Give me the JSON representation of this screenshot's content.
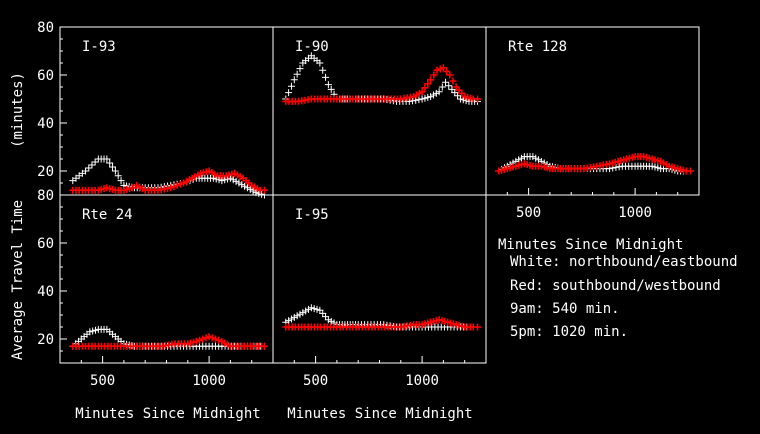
{
  "colors": {
    "background": "#000000",
    "frame": "#ffffff",
    "northbound": "#ffffff",
    "southbound": "#ff0000"
  },
  "labels": {
    "ylabel_outer": "Average Travel Time",
    "ylabel_inner": "(minutes)",
    "xlabel": "Minutes Since Midnight"
  },
  "legend": {
    "title": "Minutes Since Midnight",
    "lines": [
      "White: northbound/eastbound",
      "Red: southbound/westbound",
      "9am: 540 min.",
      "5pm: 1020 min."
    ]
  },
  "chart_data": [
    {
      "type": "scatter",
      "title": "I-93",
      "xlim": [
        300,
        1300
      ],
      "ylim": [
        10,
        80
      ],
      "yticks": [
        20,
        40,
        60,
        80
      ],
      "series": [
        {
          "name": "White: northbound/eastbound",
          "color": "#ffffff",
          "x": [
            360,
            420,
            480,
            520,
            560,
            600,
            650,
            700,
            760,
            820,
            880,
            940,
            980,
            1020,
            1060,
            1100,
            1140,
            1180,
            1220,
            1260
          ],
          "y": [
            16,
            20,
            25,
            25,
            20,
            14,
            13,
            13,
            13,
            14,
            15,
            17,
            17,
            17,
            16,
            17,
            15,
            13,
            11,
            10
          ]
        },
        {
          "name": "Red: southbound/westbound",
          "color": "#ff0000",
          "x": [
            360,
            420,
            480,
            520,
            560,
            600,
            640,
            660,
            700,
            760,
            820,
            880,
            920,
            960,
            1000,
            1040,
            1080,
            1120,
            1160,
            1200,
            1240,
            1260
          ],
          "y": [
            12,
            12,
            12,
            13,
            12,
            12,
            13,
            14,
            12,
            12,
            13,
            15,
            17,
            19,
            20,
            18,
            18,
            19,
            17,
            14,
            12,
            12
          ]
        }
      ]
    },
    {
      "type": "scatter",
      "title": "I-90",
      "xlim": [
        300,
        1300
      ],
      "ylim": [
        10,
        80
      ],
      "yticks": [
        20,
        40,
        60,
        80
      ],
      "series": [
        {
          "name": "White: northbound/eastbound",
          "color": "#ffffff",
          "x": [
            360,
            400,
            440,
            480,
            520,
            560,
            600,
            650,
            700,
            760,
            820,
            880,
            940,
            1000,
            1040,
            1080,
            1110,
            1140,
            1180,
            1220,
            1260
          ],
          "y": [
            50,
            58,
            65,
            68,
            65,
            56,
            50,
            50,
            50,
            50,
            50,
            49,
            49,
            50,
            51,
            53,
            57,
            54,
            50,
            49,
            49
          ]
        },
        {
          "name": "Red: southbound/westbound",
          "color": "#ff0000",
          "x": [
            360,
            420,
            480,
            540,
            600,
            660,
            720,
            780,
            840,
            900,
            960,
            1000,
            1040,
            1070,
            1100,
            1130,
            1160,
            1200,
            1240,
            1260
          ],
          "y": [
            49,
            49,
            50,
            50,
            50,
            50,
            50,
            50,
            50,
            50,
            51,
            53,
            58,
            62,
            63,
            60,
            55,
            51,
            50,
            50
          ]
        }
      ]
    },
    {
      "type": "scatter",
      "title": "Rte 128",
      "xlim": [
        300,
        1300
      ],
      "ylim": [
        10,
        80
      ],
      "yticks": [
        20,
        40,
        60,
        80
      ],
      "series": [
        {
          "name": "White: northbound/eastbound",
          "color": "#ffffff",
          "x": [
            360,
            400,
            440,
            480,
            520,
            560,
            600,
            650,
            700,
            760,
            820,
            880,
            940,
            1000,
            1040,
            1080,
            1120,
            1160,
            1200,
            1240,
            1260
          ],
          "y": [
            20,
            22,
            24,
            26,
            26,
            24,
            22,
            21,
            21,
            21,
            21,
            21,
            22,
            22,
            22,
            22,
            21,
            21,
            20,
            20,
            20
          ]
        },
        {
          "name": "Red: southbound/westbound",
          "color": "#ff0000",
          "x": [
            360,
            400,
            440,
            480,
            520,
            560,
            600,
            650,
            700,
            760,
            820,
            880,
            920,
            960,
            1000,
            1040,
            1080,
            1120,
            1160,
            1200,
            1240,
            1260
          ],
          "y": [
            20,
            21,
            22,
            23,
            22,
            22,
            21,
            21,
            21,
            21,
            22,
            23,
            24,
            25,
            26,
            26,
            25,
            24,
            22,
            21,
            20,
            20
          ]
        }
      ]
    },
    {
      "type": "scatter",
      "title": "Rte 24",
      "xlim": [
        300,
        1300
      ],
      "ylim": [
        10,
        80
      ],
      "yticks": [
        20,
        40,
        60,
        80
      ],
      "series": [
        {
          "name": "White: northbound/eastbound",
          "color": "#ffffff",
          "x": [
            360,
            400,
            440,
            480,
            520,
            560,
            600,
            650,
            700,
            760,
            820,
            880,
            940,
            1000,
            1060,
            1120,
            1180,
            1240,
            1260
          ],
          "y": [
            17,
            20,
            23,
            24,
            24,
            21,
            18,
            17,
            17,
            17,
            17,
            17,
            17,
            17,
            17,
            17,
            17,
            17,
            17
          ]
        },
        {
          "name": "Red: southbound/westbound",
          "color": "#ff0000",
          "x": [
            360,
            420,
            480,
            540,
            600,
            660,
            720,
            780,
            840,
            900,
            940,
            970,
            1000,
            1030,
            1060,
            1100,
            1140,
            1180,
            1220,
            1260
          ],
          "y": [
            17,
            17,
            17,
            17,
            17,
            17,
            17,
            17,
            18,
            18,
            19,
            20,
            21,
            20,
            19,
            17,
            17,
            17,
            17,
            17
          ]
        }
      ]
    },
    {
      "type": "scatter",
      "title": "I-95",
      "xlim": [
        300,
        1300
      ],
      "ylim": [
        10,
        80
      ],
      "yticks": [
        20,
        40,
        60,
        80
      ],
      "series": [
        {
          "name": "White: northbound/eastbound",
          "color": "#ffffff",
          "x": [
            360,
            400,
            440,
            480,
            520,
            560,
            600,
            650,
            700,
            760,
            820,
            880,
            940,
            1000,
            1060,
            1120,
            1180,
            1240,
            1260
          ],
          "y": [
            27,
            29,
            31,
            33,
            32,
            28,
            26,
            26,
            26,
            26,
            26,
            25,
            25,
            25,
            25,
            25,
            25,
            25,
            25
          ]
        },
        {
          "name": "Red: southbound/westbound",
          "color": "#ff0000",
          "x": [
            360,
            420,
            480,
            540,
            600,
            660,
            720,
            780,
            840,
            900,
            960,
            1000,
            1040,
            1080,
            1120,
            1160,
            1200,
            1240,
            1260
          ],
          "y": [
            25,
            25,
            25,
            25,
            25,
            25,
            25,
            25,
            25,
            25,
            26,
            26,
            27,
            28,
            27,
            26,
            25,
            25,
            25
          ]
        }
      ]
    }
  ]
}
